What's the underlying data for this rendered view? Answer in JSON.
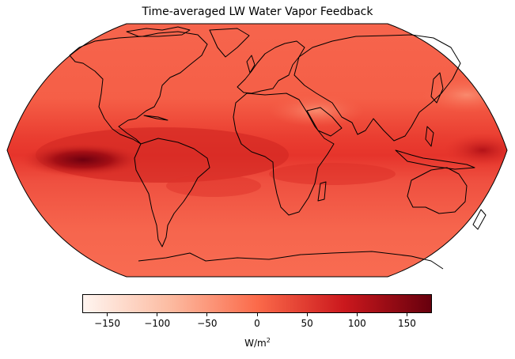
{
  "title": "Time-averaged LW Water Vapor Feedback",
  "colorbar": {
    "label": "W/m",
    "label_superscript": "2",
    "min": -175,
    "max": 175,
    "ticks": [
      {
        "value": -150,
        "label": "−150"
      },
      {
        "value": -100,
        "label": "−100"
      },
      {
        "value": -50,
        "label": "−50"
      },
      {
        "value": 0,
        "label": "0"
      },
      {
        "value": 50,
        "label": "50"
      },
      {
        "value": 100,
        "label": "100"
      },
      {
        "value": 150,
        "label": "150"
      }
    ],
    "colormap": "Reds",
    "colors": [
      "#fff5f0",
      "#fcbba1",
      "#fb6a4a",
      "#cb181d",
      "#67000d"
    ]
  },
  "map": {
    "projection": "Robinson",
    "background_color": "#f6614a",
    "tropical_band_color": "#e8362e",
    "max_color": "#6e000f",
    "coastline_color": "#000000"
  }
}
